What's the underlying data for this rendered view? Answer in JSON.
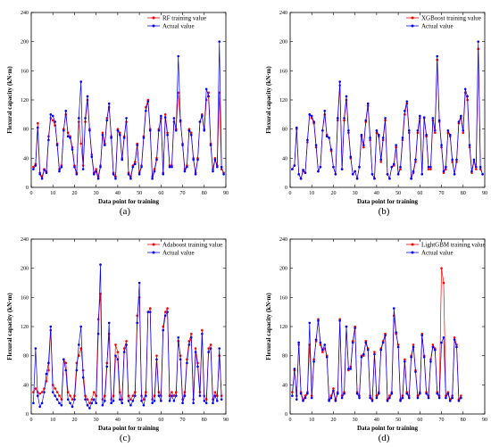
{
  "chart_data": [
    {
      "type": "line",
      "panel_label": "(a)",
      "xlabel": "Data point for training",
      "ylabel": "Flexural capacity (kN·m)",
      "xlim": [
        0,
        90
      ],
      "ylim": [
        0,
        240
      ],
      "xticks": [
        0,
        10,
        20,
        30,
        40,
        50,
        60,
        70,
        80,
        90
      ],
      "yticks": [
        0,
        40,
        80,
        120,
        160,
        200,
        240
      ],
      "legend_position": "top-right",
      "series": [
        {
          "name": "RF training value",
          "color": "#ff0000",
          "values": [
            28,
            32,
            88,
            20,
            15,
            25,
            22,
            70,
            95,
            92,
            85,
            60,
            25,
            30,
            80,
            100,
            75,
            70,
            55,
            30,
            20,
            90,
            60,
            30,
            90,
            120,
            80,
            45,
            20,
            25,
            15,
            30,
            75,
            60,
            95,
            110,
            70,
            20,
            15,
            80,
            75,
            40,
            70,
            90,
            20,
            15,
            30,
            35,
            60,
            20,
            30,
            70,
            110,
            120,
            80,
            15,
            25,
            40,
            80,
            95,
            20,
            100,
            75,
            30,
            30,
            90,
            80,
            130,
            90,
            60,
            25,
            30,
            80,
            75,
            40,
            20,
            40,
            90,
            100,
            80,
            120,
            130,
            60,
            25,
            40,
            30,
            130,
            25,
            20
          ]
        },
        {
          "name": "Actual value",
          "color": "#0000ff",
          "values": [
            25,
            30,
            82,
            18,
            12,
            24,
            20,
            65,
            100,
            98,
            90,
            58,
            22,
            28,
            78,
            105,
            70,
            68,
            52,
            28,
            18,
            95,
            145,
            25,
            95,
            125,
            78,
            42,
            18,
            22,
            12,
            28,
            72,
            58,
            92,
            115,
            68,
            18,
            12,
            78,
            72,
            38,
            68,
            95,
            18,
            12,
            28,
            32,
            58,
            18,
            28,
            68,
            105,
            118,
            78,
            12,
            22,
            38,
            78,
            98,
            18,
            96,
            72,
            28,
            28,
            95,
            78,
            180,
            92,
            58,
            22,
            28,
            78,
            72,
            38,
            18,
            38,
            90,
            98,
            78,
            135,
            125,
            58,
            22,
            38,
            28,
            200,
            28,
            18
          ]
        }
      ]
    },
    {
      "type": "line",
      "panel_label": "(b)",
      "xlabel": "Data point for training",
      "ylabel": "Flexural capacity (kN·m)",
      "xlim": [
        0,
        90
      ],
      "ylim": [
        0,
        240
      ],
      "xticks": [
        0,
        10,
        20,
        30,
        40,
        50,
        60,
        70,
        80,
        90
      ],
      "yticks": [
        0,
        40,
        80,
        120,
        160,
        200,
        240
      ],
      "legend_position": "top-right",
      "series": [
        {
          "name": "XGBoost training value",
          "color": "#ff0000",
          "values": [
            25,
            30,
            80,
            18,
            12,
            22,
            20,
            62,
            100,
            95,
            88,
            55,
            22,
            28,
            78,
            100,
            72,
            68,
            50,
            28,
            18,
            92,
            140,
            25,
            92,
            120,
            75,
            40,
            18,
            22,
            12,
            28,
            70,
            55,
            90,
            112,
            65,
            18,
            12,
            75,
            70,
            35,
            65,
            92,
            18,
            12,
            28,
            30,
            55,
            18,
            25,
            65,
            100,
            115,
            75,
            12,
            20,
            35,
            75,
            95,
            18,
            95,
            70,
            25,
            25,
            92,
            75,
            175,
            90,
            55,
            20,
            25,
            75,
            70,
            35,
            18,
            35,
            88,
            95,
            75,
            130,
            120,
            55,
            20,
            35,
            25,
            190,
            25,
            18
          ]
        },
        {
          "name": "Actual value",
          "color": "#0000ff",
          "values": [
            25,
            30,
            82,
            18,
            12,
            24,
            20,
            65,
            100,
            98,
            90,
            58,
            22,
            28,
            78,
            105,
            70,
            68,
            52,
            28,
            18,
            95,
            145,
            25,
            95,
            125,
            78,
            42,
            18,
            22,
            12,
            28,
            72,
            58,
            92,
            115,
            68,
            18,
            12,
            78,
            72,
            38,
            68,
            95,
            18,
            12,
            28,
            32,
            58,
            18,
            28,
            68,
            105,
            118,
            78,
            12,
            22,
            38,
            78,
            98,
            18,
            96,
            72,
            28,
            28,
            95,
            78,
            180,
            92,
            58,
            22,
            28,
            78,
            72,
            38,
            18,
            38,
            90,
            98,
            78,
            135,
            125,
            58,
            22,
            38,
            28,
            200,
            28,
            18
          ]
        }
      ]
    },
    {
      "type": "line",
      "panel_label": "(c)",
      "xlabel": "Data point for training",
      "ylabel": "Flexural capacity (kN·m)",
      "xlim": [
        0,
        90
      ],
      "ylim": [
        0,
        240
      ],
      "xticks": [
        0,
        10,
        20,
        30,
        40,
        50,
        60,
        70,
        80,
        90
      ],
      "yticks": [
        0,
        40,
        80,
        120,
        160,
        200,
        240
      ],
      "legend_position": "top-right",
      "series": [
        {
          "name": "Adaboost training value",
          "color": "#ff0000",
          "values": [
            30,
            35,
            30,
            28,
            30,
            35,
            45,
            60,
            115,
            40,
            35,
            30,
            25,
            20,
            75,
            70,
            30,
            25,
            20,
            25,
            70,
            80,
            90,
            60,
            25,
            20,
            15,
            20,
            30,
            25,
            130,
            165,
            20,
            25,
            70,
            110,
            20,
            25,
            95,
            85,
            30,
            20,
            90,
            100,
            25,
            20,
            25,
            30,
            135,
            160,
            25,
            20,
            30,
            140,
            145,
            20,
            25,
            80,
            30,
            25,
            120,
            140,
            145,
            25,
            30,
            25,
            30,
            100,
            80,
            20,
            30,
            75,
            100,
            110,
            20,
            90,
            70,
            30,
            115,
            25,
            20,
            90,
            95,
            20,
            30,
            25,
            80,
            25
          ]
        },
        {
          "name": "Actual value",
          "color": "#0000ff",
          "values": [
            15,
            90,
            25,
            10,
            15,
            30,
            55,
            70,
            120,
            30,
            25,
            20,
            15,
            12,
            75,
            60,
            20,
            15,
            10,
            20,
            60,
            95,
            120,
            50,
            20,
            12,
            8,
            15,
            20,
            15,
            110,
            205,
            12,
            18,
            65,
            125,
            15,
            18,
            80,
            75,
            20,
            15,
            85,
            95,
            18,
            12,
            18,
            25,
            125,
            180,
            18,
            12,
            25,
            140,
            140,
            15,
            18,
            75,
            25,
            18,
            115,
            135,
            140,
            18,
            25,
            18,
            25,
            105,
            75,
            15,
            25,
            70,
            95,
            105,
            15,
            85,
            65,
            25,
            110,
            18,
            15,
            85,
            90,
            15,
            25,
            18,
            90,
            20
          ]
        }
      ]
    },
    {
      "type": "line",
      "panel_label": "(d)",
      "xlabel": "Data point for training",
      "ylabel": "Flexural capacity (kN·m)",
      "xlim": [
        0,
        90
      ],
      "ylim": [
        0,
        240
      ],
      "xticks": [
        0,
        10,
        20,
        30,
        40,
        50,
        60,
        70,
        80,
        90
      ],
      "yticks": [
        0,
        40,
        80,
        120,
        160,
        200,
        240
      ],
      "legend_position": "top-right",
      "series": [
        {
          "name": "LightGBM training value",
          "color": "#ff0000",
          "values": [
            30,
            60,
            25,
            95,
            30,
            20,
            25,
            30,
            95,
            25,
            75,
            100,
            130,
            95,
            85,
            90,
            80,
            20,
            25,
            35,
            20,
            30,
            130,
            25,
            30,
            120,
            60,
            65,
            100,
            120,
            30,
            25,
            80,
            80,
            100,
            90,
            25,
            20,
            85,
            25,
            30,
            90,
            100,
            110,
            20,
            25,
            30,
            135,
            110,
            95,
            20,
            25,
            75,
            30,
            25,
            80,
            95,
            60,
            25,
            30,
            110,
            80,
            30,
            25,
            75,
            95,
            90,
            30,
            25,
            200,
            180,
            25,
            30,
            20,
            25,
            105,
            95,
            20,
            25
          ]
        },
        {
          "name": "Actual value",
          "color": "#0000ff",
          "values": [
            25,
            62,
            20,
            98,
            28,
            18,
            22,
            28,
            125,
            22,
            72,
            102,
            128,
            98,
            88,
            95,
            78,
            18,
            22,
            32,
            18,
            28,
            128,
            22,
            28,
            120,
            62,
            62,
            98,
            118,
            28,
            22,
            78,
            82,
            98,
            88,
            22,
            18,
            82,
            22,
            28,
            88,
            98,
            108,
            18,
            22,
            28,
            145,
            112,
            92,
            18,
            22,
            72,
            28,
            22,
            78,
            92,
            58,
            22,
            28,
            108,
            78,
            28,
            22,
            72,
            92,
            88,
            28,
            22,
            98,
            105,
            22,
            28,
            18,
            22,
            102,
            92,
            18,
            22
          ]
        }
      ]
    }
  ]
}
